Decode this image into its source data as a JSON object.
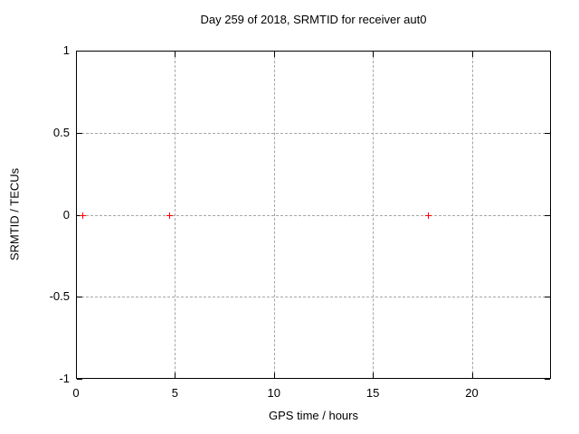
{
  "window": {
    "background": "#ffffff"
  },
  "chart_data": {
    "type": "scatter",
    "title": "Day 259 of 2018, SRMTID for receiver aut0",
    "xlabel": "GPS time / hours",
    "ylabel": "SRMTID / TECUs",
    "xlim": [
      0,
      24
    ],
    "ylim": [
      -1,
      1
    ],
    "xticks": [
      0,
      5,
      10,
      15,
      20
    ],
    "yticks": [
      -1,
      -0.5,
      0,
      0.5,
      1
    ],
    "grid": true,
    "legend": "none",
    "colors": {
      "axis": "#000000",
      "grid": "#a6a6a6",
      "background": "#ffffff"
    },
    "series": [
      {
        "name": "SRMTID",
        "marker": "plus",
        "color": "#ff0000",
        "points": [
          [
            0.3,
            0.0
          ],
          [
            4.7,
            0.0
          ],
          [
            17.8,
            0.0
          ]
        ]
      }
    ]
  }
}
